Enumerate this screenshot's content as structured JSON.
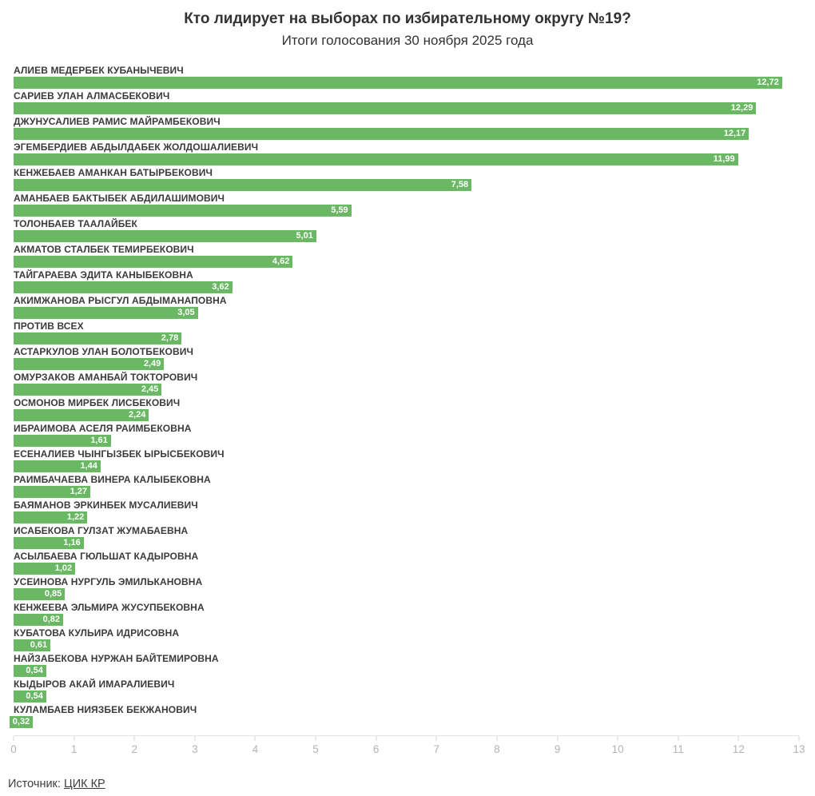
{
  "header": {
    "title": "Кто лидирует на выборах по избирательному округу №19?",
    "subtitle": "Итоги голосования 30 ноября 2025 года"
  },
  "chart_data": {
    "type": "bar",
    "orientation": "horizontal",
    "title": "Кто лидирует на выборах по избирательному округу №19?",
    "subtitle": "Итоги голосования 30 ноября 2025 года",
    "categories": [
      "АЛИЕВ МЕДЕРБЕК КУБАНЫЧЕВИЧ",
      "САРИЕВ УЛАН АЛМАСБЕКОВИЧ",
      "ДЖУНУСАЛИЕВ РАМИС МАЙРАМБЕКОВИЧ",
      "ЭГЕМБЕРДИЕВ АБДЫЛДАБЕК ЖОЛДОШАЛИЕВИЧ",
      "КЕНЖЕБАЕВ АМАНКАН БАТЫРБЕКОВИЧ",
      "АМАНБАЕВ БАКТЫБЕК АБДИЛАШИМОВИЧ",
      "ТОЛОНБАЕВ ТААЛАЙБЕК",
      "АКМАТОВ СТАЛБЕК ТЕМИРБЕКОВИЧ",
      "ТАЙГАРАЕВА ЭДИТА КАНЫБЕКОВНА",
      "АКИМЖАНОВА РЫСГУЛ АБДЫМАНАПОВНА",
      "ПРОТИВ ВСЕХ",
      "АСТАРКУЛОВ УЛАН БОЛОТБЕКОВИЧ",
      "ОМУРЗАКОВ АМАНБАЙ ТОКТОРОВИЧ",
      "ОСМОНОВ МИРБЕК ЛИСБЕКОВИЧ",
      "ИБРАИМОВА АСЕЛЯ РАИМБЕКОВНА",
      "ЕСЕНАЛИЕВ ЧЫНГЫЗБЕК ЫРЫСБЕКОВИЧ",
      "РАИМБАЧАЕВА ВИНЕРА КАЛЫБЕКОВНА",
      "БАЯМАНОВ ЭРКИНБЕК МУСАЛИЕВИЧ",
      "ИСАБЕКОВА ГУЛЗАТ ЖУМАБАЕВНА",
      "АСЫЛБАЕВА ГЮЛЬШАТ КАДЫРОВНА",
      "УСЕИНОВА НУРГУЛЬ ЭМИЛЬКАНОВНА",
      "КЕНЖЕЕВА ЭЛЬМИРА ЖУСУПБЕКОВНА",
      "КУБАТОВА КУЛЬИРА ИДРИСОВНА",
      "НАЙЗАБЕКОВА НУРЖАН БАЙТЕМИРОВНА",
      "КЫДЫРОВ АКАЙ ИМАРАЛИЕВИЧ",
      "КУЛАМБАЕВ НИЯЗБЕК БЕКЖАНОВИЧ"
    ],
    "values": [
      12.72,
      12.29,
      12.17,
      11.99,
      7.58,
      5.59,
      5.01,
      4.62,
      3.62,
      3.05,
      2.78,
      2.49,
      2.45,
      2.24,
      1.61,
      1.44,
      1.27,
      1.22,
      1.16,
      1.02,
      0.85,
      0.82,
      0.61,
      0.54,
      0.54,
      0.32
    ],
    "value_labels": [
      "12,72",
      "12,29",
      "12,17",
      "11,99",
      "7,58",
      "5,59",
      "5,01",
      "4,62",
      "3,62",
      "3,05",
      "2,78",
      "2,49",
      "2,45",
      "2,24",
      "1,61",
      "1,44",
      "1,27",
      "1,22",
      "1,16",
      "1,02",
      "0,85",
      "0,82",
      "0,61",
      "0,54",
      "0,54",
      "0,32"
    ],
    "xlim": [
      0,
      13
    ],
    "xticks": [
      0,
      1,
      2,
      3,
      4,
      5,
      6,
      7,
      8,
      9,
      10,
      11,
      12,
      13
    ],
    "grid": false,
    "legend": "none",
    "bar_color": "#6ab764",
    "value_label_color": "#ffffff"
  },
  "footer": {
    "source_prefix": "Источник:",
    "source_link": "ЦИК КР"
  },
  "colors": {
    "title_text": "#333333",
    "category_text": "#3b3b3b",
    "axis_text": "#b3b3b3",
    "axis_line": "#e2e2e2",
    "bar": "#6ab764"
  }
}
